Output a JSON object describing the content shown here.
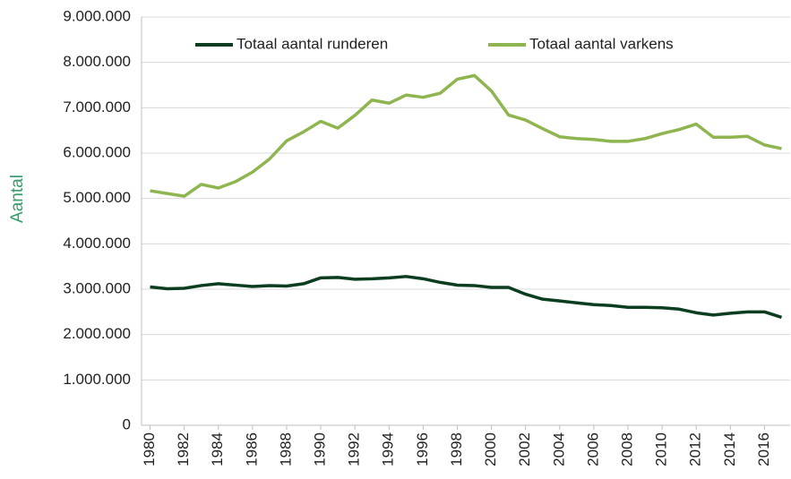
{
  "chart_data": {
    "type": "line",
    "ylabel": "Aantal",
    "x": [
      1980,
      1981,
      1982,
      1983,
      1984,
      1985,
      1986,
      1987,
      1988,
      1989,
      1990,
      1991,
      1992,
      1993,
      1994,
      1995,
      1996,
      1997,
      1998,
      1999,
      2000,
      2001,
      2002,
      2003,
      2004,
      2005,
      2006,
      2007,
      2008,
      2009,
      2010,
      2011,
      2012,
      2013,
      2014,
      2015,
      2016,
      2017
    ],
    "xlim": [
      1979.5,
      2017.5
    ],
    "xticks": [
      1980,
      1982,
      1984,
      1986,
      1988,
      1990,
      1992,
      1994,
      1996,
      1998,
      2000,
      2002,
      2004,
      2006,
      2008,
      2010,
      2012,
      2014,
      2016
    ],
    "ylim": [
      0,
      9000000
    ],
    "yticks": [
      0,
      {
        "value": 1000000,
        "label": "1.000.000"
      },
      {
        "value": 2000000,
        "label": "2.000.000"
      },
      {
        "value": 3000000,
        "label": "3.000.000"
      },
      {
        "value": 4000000,
        "label": "4.000.000"
      },
      {
        "value": 5000000,
        "label": "5.000.000"
      },
      {
        "value": 6000000,
        "label": "6.000.000"
      },
      {
        "value": 7000000,
        "label": "7.000.000"
      },
      {
        "value": 8000000,
        "label": "8.000.000"
      },
      {
        "value": 9000000,
        "label": "9.000.000"
      }
    ],
    "grid": true,
    "legend": "top",
    "series": [
      {
        "name": "Totaal aantal runderen",
        "color": "#0b3d20",
        "values": [
          3050000,
          3010000,
          3020000,
          3080000,
          3120000,
          3090000,
          3060000,
          3080000,
          3070000,
          3120000,
          3250000,
          3260000,
          3220000,
          3230000,
          3250000,
          3280000,
          3230000,
          3150000,
          3090000,
          3080000,
          3040000,
          3040000,
          2890000,
          2780000,
          2740000,
          2700000,
          2660000,
          2640000,
          2600000,
          2600000,
          2590000,
          2560000,
          2480000,
          2430000,
          2470000,
          2500000,
          2500000,
          2380000
        ]
      },
      {
        "name": "Totaal aantal varkens",
        "color": "#8fb550",
        "values": [
          5170000,
          5110000,
          5050000,
          5310000,
          5230000,
          5370000,
          5580000,
          5870000,
          6270000,
          6470000,
          6700000,
          6550000,
          6830000,
          7170000,
          7100000,
          7280000,
          7230000,
          7320000,
          7630000,
          7710000,
          7370000,
          6840000,
          6730000,
          6540000,
          6360000,
          6320000,
          6300000,
          6260000,
          6260000,
          6320000,
          6430000,
          6520000,
          6640000,
          6350000,
          6350000,
          6370000,
          6180000,
          6100000
        ]
      }
    ]
  }
}
